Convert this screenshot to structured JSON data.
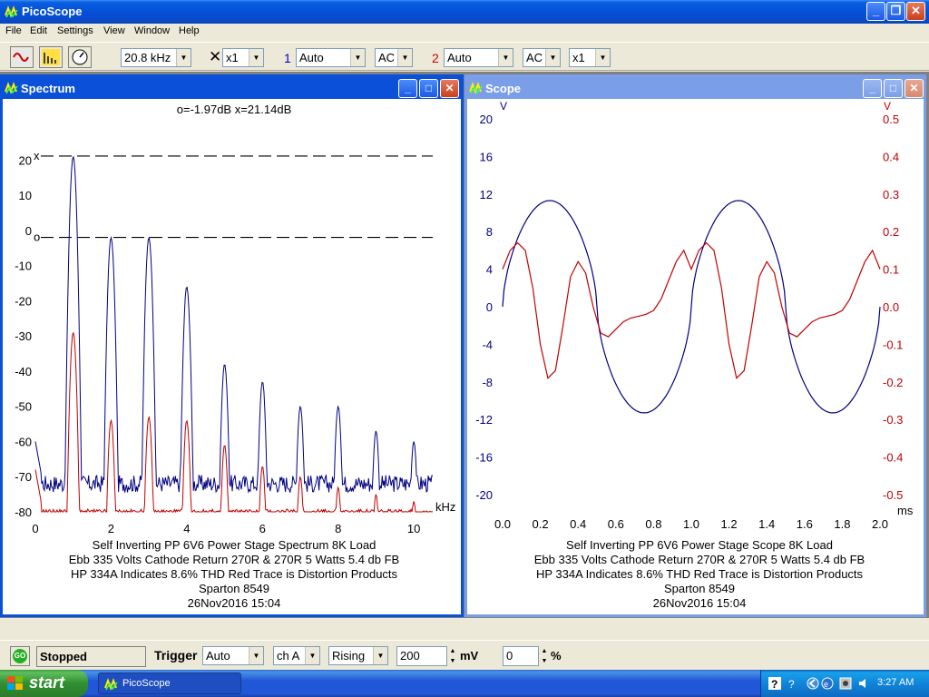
{
  "app": {
    "title": "PicoScope"
  },
  "menu": [
    "File",
    "Edit",
    "Settings",
    "View",
    "Window",
    "Help"
  ],
  "toolbar": {
    "freq": "20.8 kHz",
    "zoom": "x1",
    "ch1_num": "1",
    "ch1_range": "Auto",
    "ch1_coupling": "AC",
    "ch2_num": "2",
    "ch2_range": "Auto",
    "ch2_coupling": "AC",
    "ch2_zoom": "x1"
  },
  "spectrum": {
    "title": "Spectrum",
    "marker_readout": "o=-1.97dB  x=21.14dB",
    "marker_o": "o",
    "marker_x": "x",
    "x_unit": "kHz",
    "caption": [
      "Self Inverting PP 6V6 Power Stage Spectrum 8K Load",
      "Ebb 335 Volts Cathode Return 270R & 270R 5 Watts 5.4 db FB",
      "HP 334A Indicates 8.6% THD Red Trace is Distortion Products",
      "Sparton 8549",
      "26Nov2016  15:04"
    ]
  },
  "scope": {
    "title": "Scope",
    "left_unit": "V",
    "right_unit": "V",
    "x_unit": "ms",
    "caption": [
      "Self Inverting PP 6V6 Power Stage Scope 8K Load",
      "Ebb 335 Volts Cathode Return 270R & 270R 5 Watts 5.4 db FB",
      "HP 334A Indicates 8.6% THD Red Trace is Distortion Products",
      "Sparton 8549",
      "26Nov2016  15:04"
    ]
  },
  "chart_data": [
    {
      "type": "line",
      "xlim": [
        0,
        10.5
      ],
      "ylim": [
        -80,
        25
      ],
      "x_ticks": [
        "0",
        "2",
        "4",
        "6",
        "8",
        "10"
      ],
      "y_ticks": [
        "20",
        "10",
        "0",
        "-10",
        "-20",
        "-30",
        "-40",
        "-50",
        "-60",
        "-70",
        "-80"
      ],
      "grid": false,
      "markers": {
        "x_db": 21.14,
        "o_db": -1.97
      },
      "series": [
        {
          "color": "#000080",
          "peaks": [
            [
              1,
              21
            ],
            [
              2,
              -2
            ],
            [
              3,
              -2
            ],
            [
              4,
              -16
            ],
            [
              5,
              -38
            ],
            [
              6,
              -43
            ],
            [
              7,
              -50
            ],
            [
              8,
              -50
            ],
            [
              9,
              -57
            ],
            [
              10,
              -60
            ]
          ],
          "floor": -72
        },
        {
          "color": "#c00000",
          "peaks": [
            [
              1,
              -29
            ],
            [
              2,
              -54
            ],
            [
              3,
              -53
            ],
            [
              4,
              -54
            ],
            [
              5,
              -61
            ],
            [
              6,
              -67
            ],
            [
              7,
              -70
            ],
            [
              8,
              -73
            ],
            [
              9,
              -75
            ],
            [
              10,
              -77
            ]
          ],
          "floor": -80
        }
      ]
    },
    {
      "type": "line",
      "xlim": [
        0,
        2.0
      ],
      "x_ticks": [
        "0.0",
        "0.2",
        "0.4",
        "0.6",
        "0.8",
        "1.0",
        "1.2",
        "1.4",
        "1.6",
        "1.8",
        "2.0"
      ],
      "ylim_left": [
        -20,
        20
      ],
      "y_ticks_left": [
        "20",
        "16",
        "12",
        "8",
        "4",
        "0",
        "-4",
        "-8",
        "-12",
        "-16",
        "-20"
      ],
      "ylim_right": [
        -0.5,
        0.5
      ],
      "y_ticks_right": [
        "0.5",
        "0.4",
        "0.3",
        "0.2",
        "0.1",
        "0.0",
        "-0.1",
        "-0.2",
        "-0.3",
        "-0.4",
        "-0.5"
      ],
      "grid": false,
      "series": [
        {
          "axis": "left",
          "color": "#000080",
          "amplitude": 11.3,
          "period_ms": 1.0
        },
        {
          "axis": "right",
          "color": "#c00000",
          "points": [
            [
              0,
              0.1
            ],
            [
              0.04,
              0.15
            ],
            [
              0.08,
              0.17
            ],
            [
              0.12,
              0.15
            ],
            [
              0.16,
              0.05
            ],
            [
              0.2,
              -0.1
            ],
            [
              0.24,
              -0.19
            ],
            [
              0.28,
              -0.17
            ],
            [
              0.32,
              -0.05
            ],
            [
              0.36,
              0.08
            ],
            [
              0.4,
              0.12
            ],
            [
              0.44,
              0.09
            ],
            [
              0.48,
              0.0
            ],
            [
              0.52,
              -0.07
            ],
            [
              0.56,
              -0.08
            ],
            [
              0.6,
              -0.06
            ],
            [
              0.64,
              -0.04
            ],
            [
              0.68,
              -0.03
            ],
            [
              0.72,
              -0.025
            ],
            [
              0.76,
              -0.02
            ],
            [
              0.8,
              -0.01
            ],
            [
              0.84,
              0.02
            ],
            [
              0.88,
              0.07
            ],
            [
              0.92,
              0.12
            ],
            [
              0.96,
              0.15
            ],
            [
              1.0,
              0.1
            ]
          ]
        }
      ]
    }
  ],
  "status": {
    "go": "GO",
    "state": "Stopped",
    "trigger_label": "Trigger",
    "trigger_mode": "Auto",
    "trigger_ch": "ch A",
    "trigger_edge": "Rising",
    "level": "200",
    "level_unit": "mV",
    "delay": "0",
    "delay_unit": "%"
  },
  "taskbar": {
    "start": "start",
    "task": "PicoScope",
    "clock": "3:27 AM"
  }
}
